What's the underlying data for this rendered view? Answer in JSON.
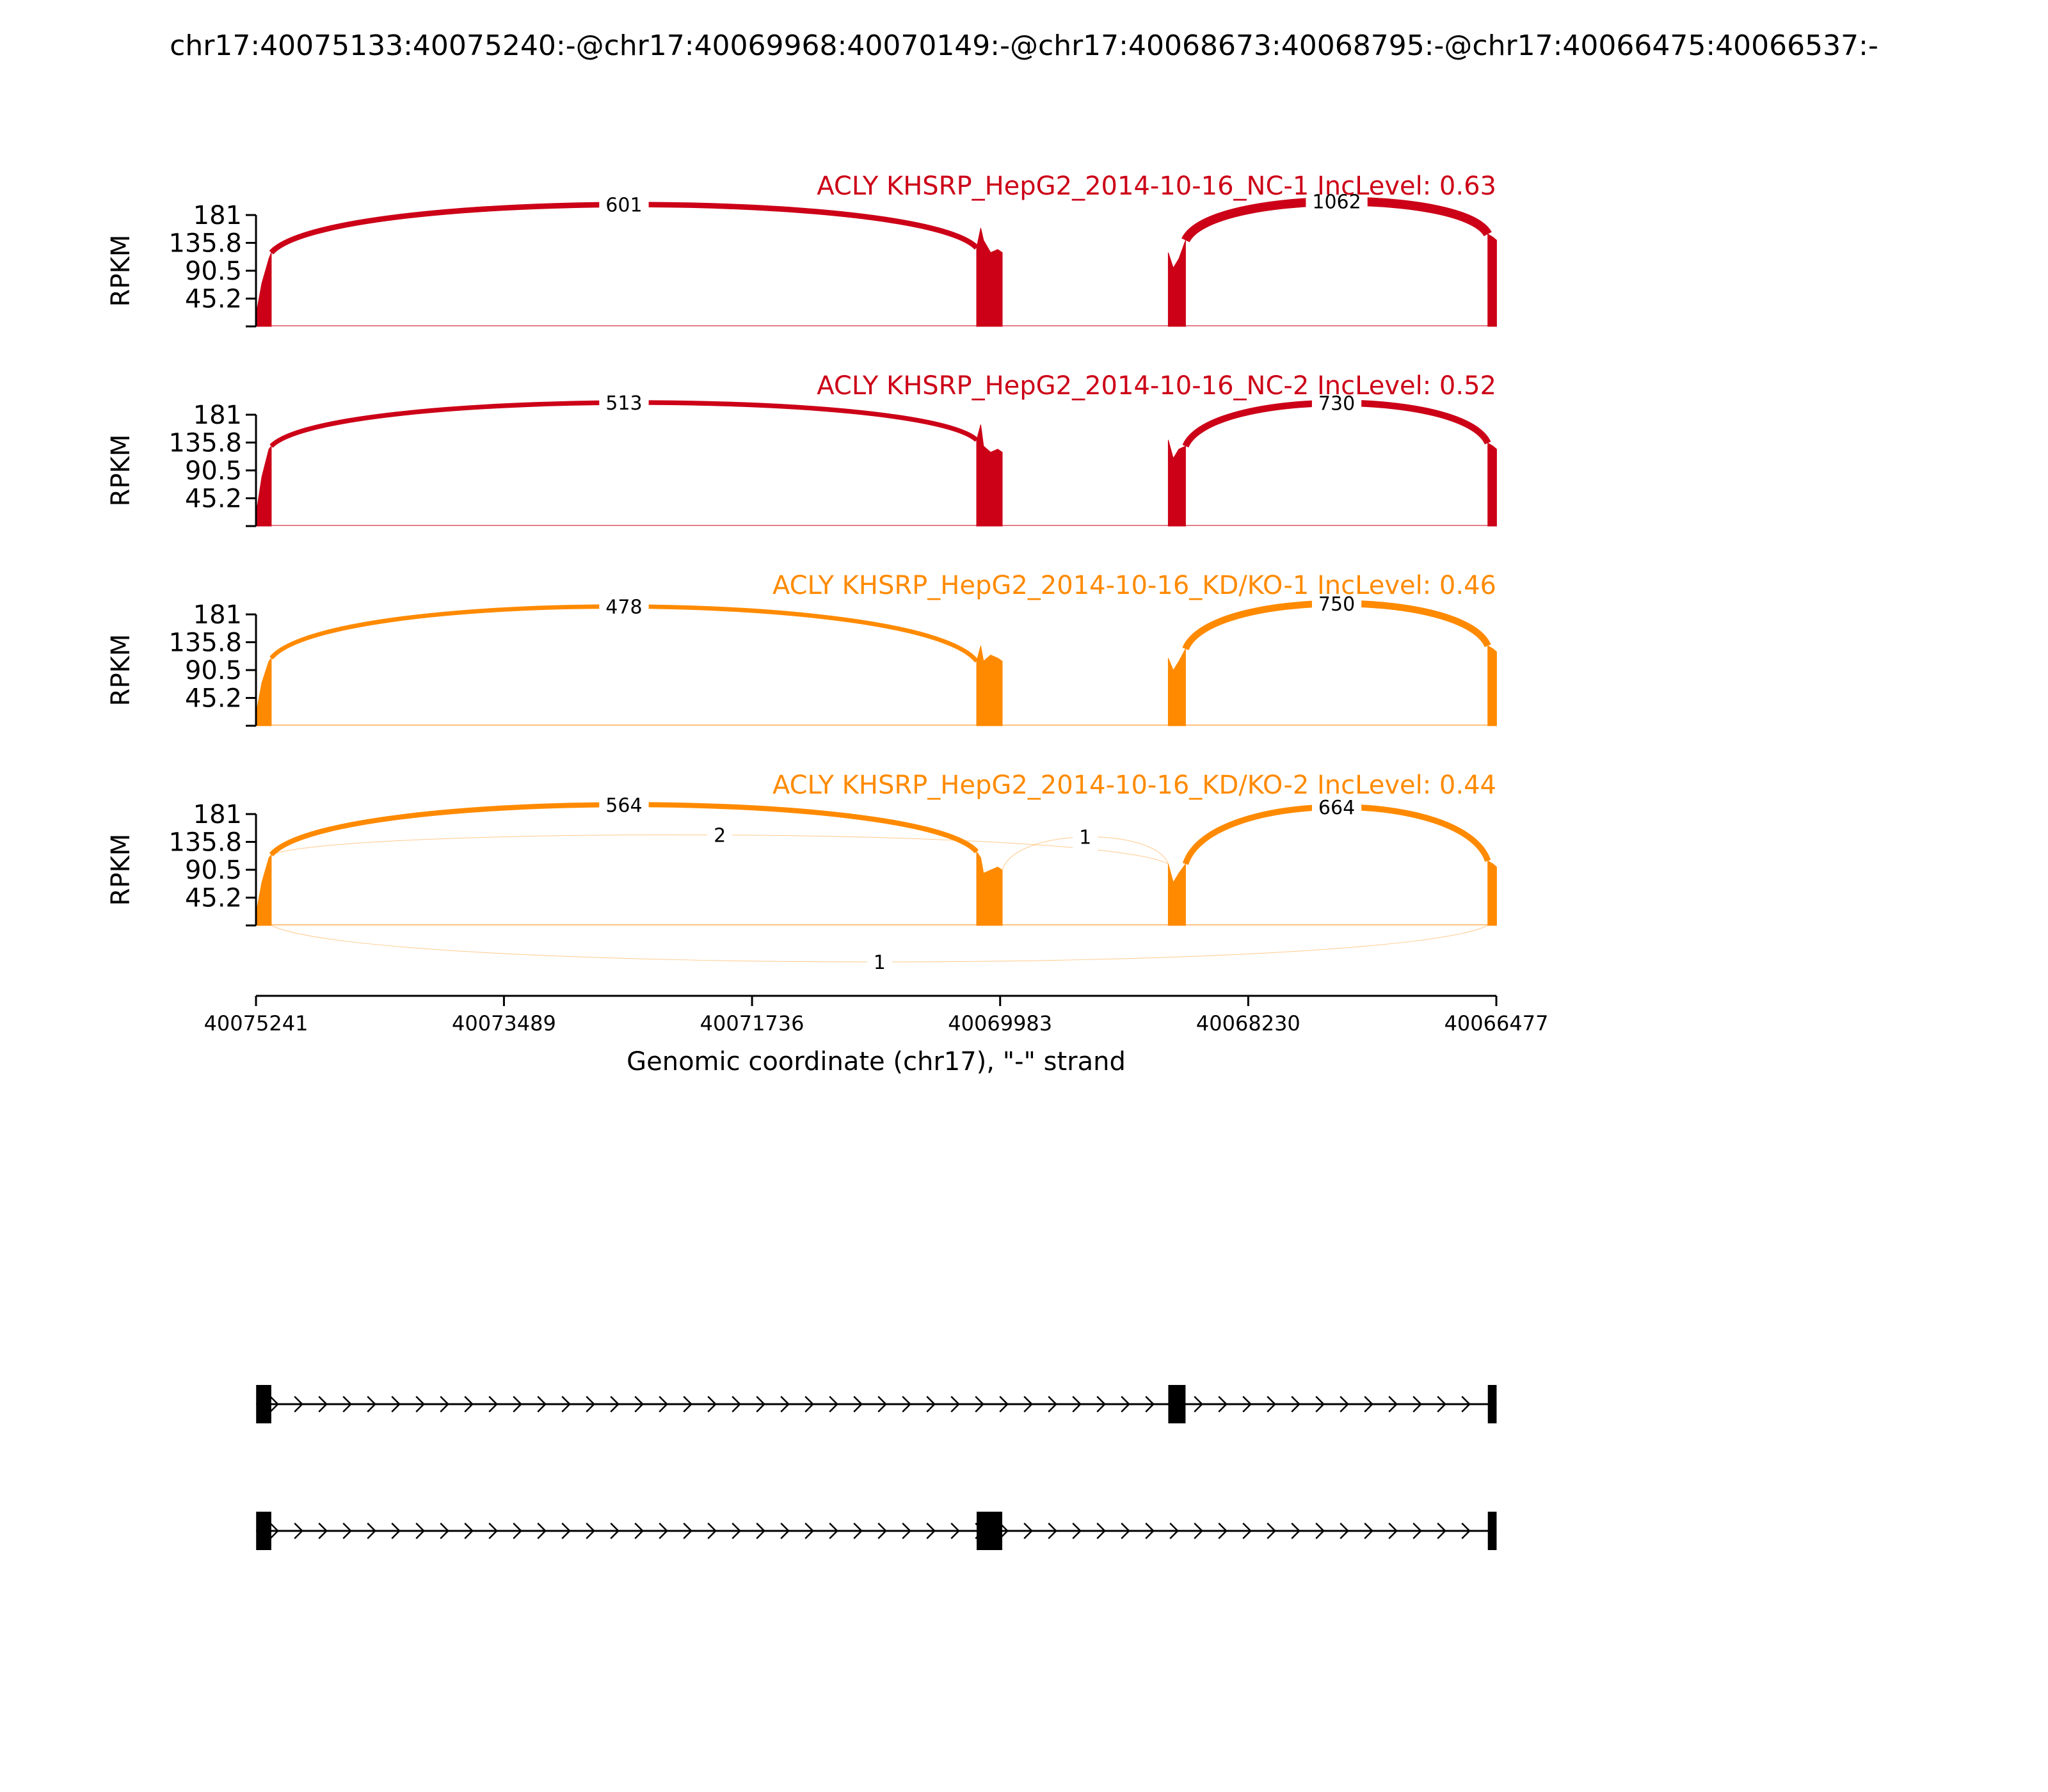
{
  "figure_title": "chr17:40075133:40075240:-@chr17:40069968:40070149:-@chr17:40068673:40068795:-@chr17:40066475:40066537:-",
  "colors": {
    "nc": "#cc0017",
    "kd": "#ff8a00",
    "axis": "#000000",
    "gene": "#000000"
  },
  "chart_data": {
    "type": "area",
    "chart_kind": "sashimi",
    "ylabel": "RPKM",
    "ylim": [
      0,
      181
    ],
    "yticks": [
      "181",
      "135.8",
      "90.5",
      "45.2"
    ],
    "xlabel": "Genomic coordinate (chr17), \"-\" strand",
    "xlim": [
      40075241,
      40066477
    ],
    "xticks": [
      "40075241",
      "40073489",
      "40071736",
      "40069983",
      "40068230",
      "40066477"
    ],
    "exons": [
      [
        40075240,
        40075133
      ],
      [
        40070149,
        40069968
      ],
      [
        40068795,
        40068673
      ],
      [
        40066537,
        40066475
      ]
    ],
    "tracks": [
      {
        "name": "ACLY KHSRP_HepG2_2014-10-16_NC-1 IncLevel: 0.63",
        "color_key": "nc",
        "coverage": [
          {
            "x": 40075240,
            "y": 20
          },
          {
            "x": 40075200,
            "y": 70
          },
          {
            "x": 40075150,
            "y": 110
          },
          {
            "x": 40075133,
            "y": 120
          },
          {
            "x": 40070149,
            "y": 128
          },
          {
            "x": 40070120,
            "y": 160
          },
          {
            "x": 40070100,
            "y": 140
          },
          {
            "x": 40070050,
            "y": 120
          },
          {
            "x": 40070000,
            "y": 125
          },
          {
            "x": 40069968,
            "y": 120
          },
          {
            "x": 40068795,
            "y": 120
          },
          {
            "x": 40068760,
            "y": 95
          },
          {
            "x": 40068720,
            "y": 110
          },
          {
            "x": 40068673,
            "y": 140
          },
          {
            "x": 40066537,
            "y": 150
          },
          {
            "x": 40066500,
            "y": 145
          },
          {
            "x": 40066475,
            "y": 140
          }
        ],
        "junctions": [
          {
            "from": 40075133,
            "to": 40070149,
            "count": "601",
            "side": "above"
          },
          {
            "from": 40068673,
            "to": 40066537,
            "count": "1062",
            "side": "above"
          }
        ]
      },
      {
        "name": "ACLY KHSRP_HepG2_2014-10-16_NC-2 IncLevel: 0.52",
        "color_key": "nc",
        "coverage": [
          {
            "x": 40075240,
            "y": 20
          },
          {
            "x": 40075200,
            "y": 80
          },
          {
            "x": 40075150,
            "y": 125
          },
          {
            "x": 40075133,
            "y": 130
          },
          {
            "x": 40070149,
            "y": 140
          },
          {
            "x": 40070120,
            "y": 165
          },
          {
            "x": 40070100,
            "y": 130
          },
          {
            "x": 40070050,
            "y": 120
          },
          {
            "x": 40070000,
            "y": 125
          },
          {
            "x": 40069968,
            "y": 120
          },
          {
            "x": 40068795,
            "y": 140
          },
          {
            "x": 40068760,
            "y": 110
          },
          {
            "x": 40068720,
            "y": 125
          },
          {
            "x": 40068673,
            "y": 130
          },
          {
            "x": 40066537,
            "y": 135
          },
          {
            "x": 40066500,
            "y": 130
          },
          {
            "x": 40066475,
            "y": 125
          }
        ],
        "junctions": [
          {
            "from": 40075133,
            "to": 40070149,
            "count": "513",
            "side": "above"
          },
          {
            "from": 40068673,
            "to": 40066537,
            "count": "730",
            "side": "above"
          }
        ]
      },
      {
        "name": "ACLY KHSRP_HepG2_2014-10-16_KD/KO-1 IncLevel: 0.46",
        "color_key": "kd",
        "coverage": [
          {
            "x": 40075240,
            "y": 20
          },
          {
            "x": 40075200,
            "y": 70
          },
          {
            "x": 40075150,
            "y": 105
          },
          {
            "x": 40075133,
            "y": 110
          },
          {
            "x": 40070149,
            "y": 105
          },
          {
            "x": 40070120,
            "y": 130
          },
          {
            "x": 40070100,
            "y": 105
          },
          {
            "x": 40070050,
            "y": 115
          },
          {
            "x": 40070000,
            "y": 110
          },
          {
            "x": 40069968,
            "y": 105
          },
          {
            "x": 40068795,
            "y": 110
          },
          {
            "x": 40068760,
            "y": 90
          },
          {
            "x": 40068720,
            "y": 105
          },
          {
            "x": 40068673,
            "y": 125
          },
          {
            "x": 40066537,
            "y": 130
          },
          {
            "x": 40066500,
            "y": 125
          },
          {
            "x": 40066475,
            "y": 120
          }
        ],
        "junctions": [
          {
            "from": 40075133,
            "to": 40070149,
            "count": "478",
            "side": "above"
          },
          {
            "from": 40068673,
            "to": 40066537,
            "count": "750",
            "side": "above"
          }
        ]
      },
      {
        "name": "ACLY KHSRP_HepG2_2014-10-16_KD/KO-2 IncLevel: 0.44",
        "color_key": "kd",
        "coverage": [
          {
            "x": 40075240,
            "y": 20
          },
          {
            "x": 40075200,
            "y": 70
          },
          {
            "x": 40075150,
            "y": 110
          },
          {
            "x": 40075133,
            "y": 115
          },
          {
            "x": 40070149,
            "y": 120
          },
          {
            "x": 40070120,
            "y": 110
          },
          {
            "x": 40070100,
            "y": 85
          },
          {
            "x": 40070050,
            "y": 90
          },
          {
            "x": 40070000,
            "y": 95
          },
          {
            "x": 40069968,
            "y": 90
          },
          {
            "x": 40068795,
            "y": 100
          },
          {
            "x": 40068760,
            "y": 70
          },
          {
            "x": 40068720,
            "y": 85
          },
          {
            "x": 40068673,
            "y": 100
          },
          {
            "x": 40066537,
            "y": 105
          },
          {
            "x": 40066500,
            "y": 100
          },
          {
            "x": 40066475,
            "y": 95
          }
        ],
        "junctions": [
          {
            "from": 40075133,
            "to": 40070149,
            "count": "564",
            "side": "above"
          },
          {
            "from": 40075133,
            "to": 40068795,
            "count": "2",
            "side": "above"
          },
          {
            "from": 40069968,
            "to": 40068795,
            "count": "1",
            "side": "above"
          },
          {
            "from": 40068673,
            "to": 40066537,
            "count": "664",
            "side": "above"
          },
          {
            "from": 40075133,
            "to": 40066537,
            "count": "1",
            "side": "below"
          }
        ]
      }
    ],
    "transcripts": [
      {
        "exons": [
          [
            40075240,
            40075133
          ],
          [
            40068795,
            40068673
          ],
          [
            40066537,
            40066475
          ]
        ]
      },
      {
        "exons": [
          [
            40075240,
            40075133
          ],
          [
            40070149,
            40069968
          ],
          [
            40066537,
            40066475
          ]
        ]
      }
    ]
  }
}
